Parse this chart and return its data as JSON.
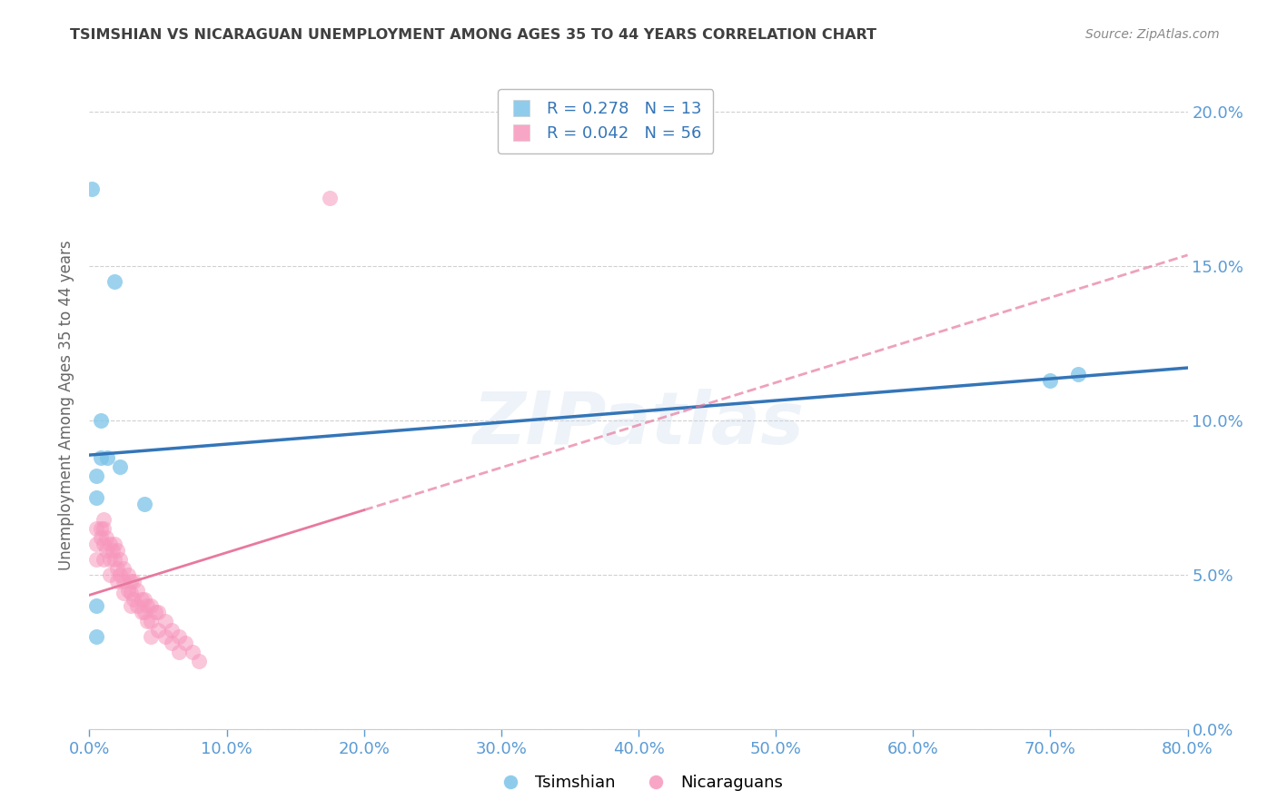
{
  "title": "TSIMSHIAN VS NICARAGUAN UNEMPLOYMENT AMONG AGES 35 TO 44 YEARS CORRELATION CHART",
  "source": "Source: ZipAtlas.com",
  "ylabel_left": "Unemployment Among Ages 35 to 44 years",
  "xlim": [
    0.0,
    0.8
  ],
  "ylim": [
    0.0,
    0.21
  ],
  "yticks": [
    0.0,
    0.05,
    0.1,
    0.15,
    0.2
  ],
  "xticks": [
    0.0,
    0.1,
    0.2,
    0.3,
    0.4,
    0.5,
    0.6,
    0.7,
    0.8
  ],
  "tsimshian_color": "#7bc4e8",
  "nicaraguan_color": "#f797bc",
  "tsimshian_line_color": "#3475b8",
  "nicaraguan_line_color": "#e8799e",
  "legend_label1": "Tsimshian",
  "legend_label2": "Nicaraguans",
  "tsimshian_x": [
    0.002,
    0.018,
    0.008,
    0.013,
    0.008,
    0.022,
    0.005,
    0.005,
    0.005,
    0.04,
    0.72,
    0.7,
    0.005
  ],
  "tsimshian_y": [
    0.175,
    0.145,
    0.1,
    0.088,
    0.088,
    0.085,
    0.082,
    0.075,
    0.04,
    0.073,
    0.115,
    0.113,
    0.03
  ],
  "nicaraguan_x": [
    0.005,
    0.005,
    0.005,
    0.008,
    0.008,
    0.01,
    0.01,
    0.01,
    0.01,
    0.012,
    0.012,
    0.015,
    0.015,
    0.015,
    0.017,
    0.018,
    0.018,
    0.02,
    0.02,
    0.02,
    0.022,
    0.022,
    0.025,
    0.025,
    0.025,
    0.028,
    0.028,
    0.03,
    0.03,
    0.03,
    0.032,
    0.032,
    0.035,
    0.035,
    0.038,
    0.038,
    0.04,
    0.04,
    0.042,
    0.042,
    0.045,
    0.045,
    0.045,
    0.048,
    0.05,
    0.05,
    0.055,
    0.055,
    0.06,
    0.06,
    0.065,
    0.065,
    0.07,
    0.075,
    0.08,
    0.175
  ],
  "nicaraguan_y": [
    0.065,
    0.06,
    0.055,
    0.065,
    0.062,
    0.068,
    0.065,
    0.06,
    0.055,
    0.062,
    0.058,
    0.06,
    0.055,
    0.05,
    0.058,
    0.06,
    0.055,
    0.058,
    0.052,
    0.048,
    0.055,
    0.05,
    0.052,
    0.048,
    0.044,
    0.05,
    0.045,
    0.048,
    0.044,
    0.04,
    0.048,
    0.042,
    0.045,
    0.04,
    0.042,
    0.038,
    0.042,
    0.038,
    0.04,
    0.035,
    0.04,
    0.035,
    0.03,
    0.038,
    0.038,
    0.032,
    0.035,
    0.03,
    0.032,
    0.028,
    0.03,
    0.025,
    0.028,
    0.025,
    0.022,
    0.172
  ],
  "background_color": "#ffffff",
  "grid_color": "#d0d0d0",
  "axis_tick_color": "#5b9bd5",
  "title_color": "#404040",
  "source_color": "#888888"
}
